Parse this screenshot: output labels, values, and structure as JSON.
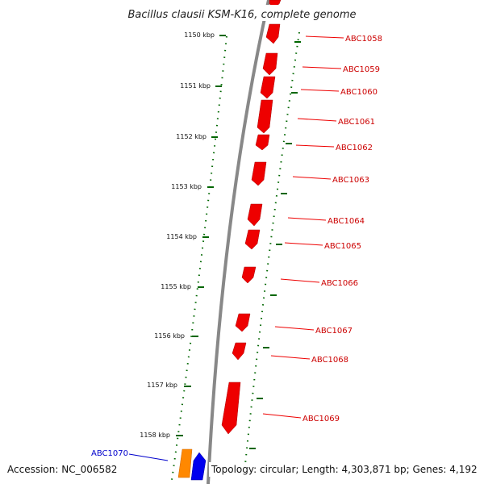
{
  "title": "Bacillus clausii KSM-K16, complete genome",
  "footer": {
    "accession": "Accession: NC_006582",
    "topology": "Topology: circular; Length: 4,303,871 bp; Genes: 4,192"
  },
  "ticks": [
    "1150 kbp",
    "1151 kbp",
    "1152 kbp",
    "1153 kbp",
    "1154 kbp",
    "1155 kbp",
    "1156 kbp",
    "1157 kbp",
    "1158 kbp"
  ],
  "genes": [
    {
      "label": "ABC1058",
      "color": "#ee0000"
    },
    {
      "label": "ABC1059",
      "color": "#ee0000"
    },
    {
      "label": "ABC1060",
      "color": "#ee0000"
    },
    {
      "label": "ABC1061",
      "color": "#ee0000"
    },
    {
      "label": "ABC1062",
      "color": "#ee0000"
    },
    {
      "label": "ABC1063",
      "color": "#ee0000"
    },
    {
      "label": "ABC1064",
      "color": "#ee0000"
    },
    {
      "label": "ABC1065",
      "color": "#ee0000"
    },
    {
      "label": "ABC1066",
      "color": "#ee0000"
    },
    {
      "label": "ABC1067",
      "color": "#ee0000"
    },
    {
      "label": "ABC1068",
      "color": "#ee0000"
    },
    {
      "label": "ABC1069",
      "color": "#ee0000"
    },
    {
      "label": "ABC1070",
      "color": "#0000ee"
    }
  ],
  "colors": {
    "backbone": "#808080",
    "tick": "#006600",
    "forward_gene": "#ee0000",
    "reverse_gene": "#0000ee",
    "rna_gene": "#ff8800"
  }
}
